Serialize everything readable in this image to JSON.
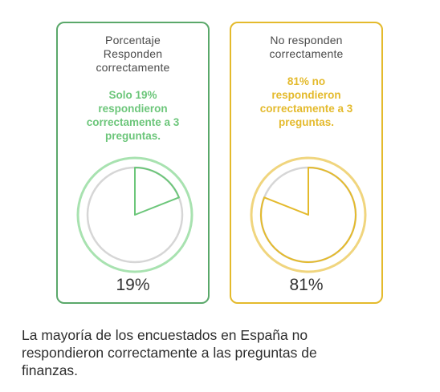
{
  "chart_data": {
    "type": "pie",
    "panels": [
      {
        "title_lines": [
          "Porcentaje",
          "Responden",
          "correctamente"
        ],
        "note_lines": [
          "Solo 19%",
          "respondieron",
          "correctamente a 3",
          "preguntas."
        ],
        "value": 19,
        "label": "19%",
        "color": "#6cc67a",
        "ring_color": "#a8e2b0"
      },
      {
        "title_lines": [
          "No responden",
          "correctamente"
        ],
        "note_lines": [
          "81% no",
          "respondieron",
          "correctamente a 3",
          "preguntas."
        ],
        "value": 81,
        "label": "81%",
        "color": "#e4ba2c",
        "ring_color": "#f0d57e"
      }
    ],
    "caption_lines": [
      "La mayoría de los encuestados en España no",
      "respondieron correctamente a las preguntas de",
      "finanzas."
    ]
  }
}
